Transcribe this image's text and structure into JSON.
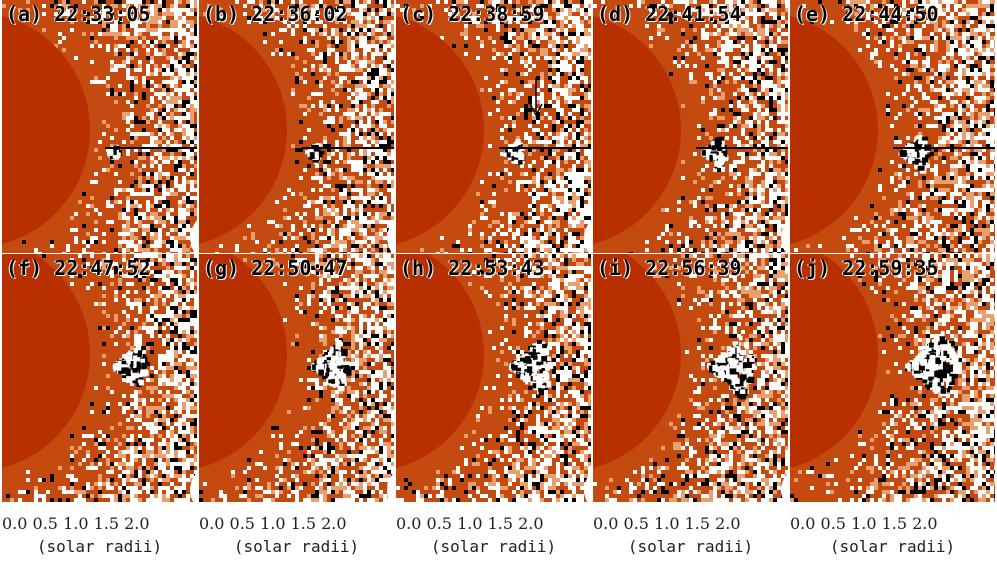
{
  "panels": [
    {
      "label": "(a) 22:33:05"
    },
    {
      "label": "(b) 22:36:02"
    },
    {
      "label": "(c) 22:38:59"
    },
    {
      "label": "(d) 22:41:54"
    },
    {
      "label": "(e) 22:44:50"
    },
    {
      "label": "(f) 22:47:52"
    },
    {
      "label": "(g) 22:50:47"
    },
    {
      "label": "(h) 22:53:43"
    },
    {
      "label": "(i) 22:56:39"
    },
    {
      "label": "(j) 22:59:35"
    }
  ],
  "axis": {
    "tick_text": "0.0 0.5 1.0 1.5 2.0",
    "unit_text": "(solar radii)"
  },
  "colors": {
    "disk": "#b93000",
    "background": "#c44a10",
    "bright": "#ffffff",
    "dark": "#000000"
  }
}
